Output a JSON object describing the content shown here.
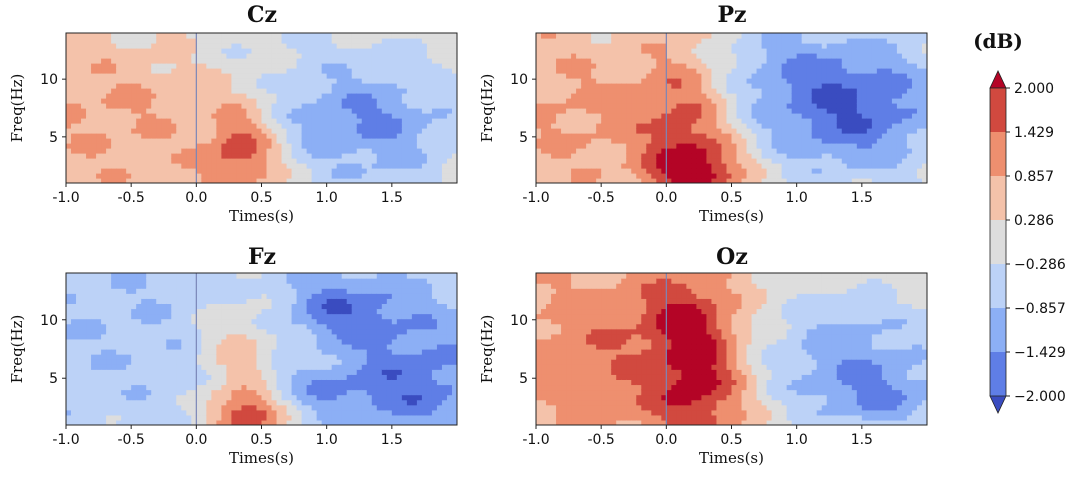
{
  "chart_data": {
    "type": "heatmap",
    "description_units": "time-frequency power",
    "xlabel": "Times(s)",
    "ylabel": "Freq(Hz)",
    "xlim": [
      -1.0,
      2.0
    ],
    "ylim": [
      1,
      14
    ],
    "x_ticks": [
      "-1.0",
      "-0.5",
      "0.0",
      "0.5",
      "1.0",
      "1.5"
    ],
    "x_tick_values": [
      -1.0,
      -0.5,
      0.0,
      0.5,
      1.0,
      1.5
    ],
    "y_ticks": [
      "5",
      "10"
    ],
    "y_tick_values": [
      5,
      10
    ],
    "event_marker_time": 0.0,
    "colorbar": {
      "label": "(dB)",
      "levels": [
        -2.0,
        -1.429,
        -0.857,
        -0.286,
        0.286,
        0.857,
        1.429,
        2.0
      ],
      "tick_labels": [
        "2.000",
        "1.429",
        "0.857",
        "0.286",
        "−0.286",
        "−0.857",
        "−1.429",
        "−2.000"
      ],
      "colors": [
        "#3a4cc0",
        "#5f7ee6",
        "#8caff5",
        "#bcd2f7",
        "#dddddd",
        "#f4c2aa",
        "#ee8f6f",
        "#d1493f",
        "#b40426"
      ]
    },
    "panels": [
      {
        "title": "Cz",
        "background_level": 0.5,
        "blobs": [
          {
            "t": -0.6,
            "f": 8,
            "st": 0.5,
            "sf": 5,
            "a": 0.4
          },
          {
            "t": 0.35,
            "f": 4,
            "st": 0.2,
            "sf": 2.5,
            "a": 1.6
          },
          {
            "t": 1.3,
            "f": 6.5,
            "st": 0.6,
            "sf": 3.5,
            "a": -2.0
          },
          {
            "t": 0.8,
            "f": 13,
            "st": 1.2,
            "sf": 2,
            "a": -0.6
          },
          {
            "t": 1.4,
            "f": 1.5,
            "st": 0.5,
            "sf": 1.5,
            "a": -0.5
          }
        ]
      },
      {
        "title": "Pz",
        "background_level": 0.2,
        "blobs": [
          {
            "t": -0.6,
            "f": 8,
            "st": 0.6,
            "sf": 6,
            "a": 0.8
          },
          {
            "t": 0.15,
            "f": 8,
            "st": 0.25,
            "sf": 5,
            "a": 1.2
          },
          {
            "t": 0.25,
            "f": 2,
            "st": 0.25,
            "sf": 2,
            "a": 1.8
          },
          {
            "t": 1.4,
            "f": 7,
            "st": 0.55,
            "sf": 4,
            "a": -2.1
          },
          {
            "t": 0.8,
            "f": 12,
            "st": 0.8,
            "sf": 3,
            "a": -0.8
          }
        ]
      },
      {
        "title": "Fz",
        "background_level": -0.5,
        "blobs": [
          {
            "t": -0.5,
            "f": 10,
            "st": 0.7,
            "sf": 5,
            "a": -0.3
          },
          {
            "t": 0.4,
            "f": 1.8,
            "st": 0.2,
            "sf": 1.6,
            "a": 2.4
          },
          {
            "t": 0.3,
            "f": 6,
            "st": 0.2,
            "sf": 2.5,
            "a": 0.9
          },
          {
            "t": 0.4,
            "f": 10,
            "st": 0.3,
            "sf": 3,
            "a": 0.6
          },
          {
            "t": 1.1,
            "f": 11,
            "st": 0.35,
            "sf": 2,
            "a": -1.3
          },
          {
            "t": 1.7,
            "f": 5,
            "st": 0.4,
            "sf": 4,
            "a": -1.2
          },
          {
            "t": 1.0,
            "f": 4,
            "st": 0.4,
            "sf": 1.5,
            "a": -0.7
          }
        ]
      },
      {
        "title": "Oz",
        "background_level": 0.3,
        "blobs": [
          {
            "t": -0.5,
            "f": 7,
            "st": 0.6,
            "sf": 6,
            "a": 1.0
          },
          {
            "t": 0.25,
            "f": 5,
            "st": 0.25,
            "sf": 4.5,
            "a": 1.7
          },
          {
            "t": 0.15,
            "f": 11,
            "st": 0.25,
            "sf": 2.5,
            "a": 0.8
          },
          {
            "t": 1.4,
            "f": 7,
            "st": 0.55,
            "sf": 4,
            "a": -1.5
          },
          {
            "t": 1.7,
            "f": 3,
            "st": 0.4,
            "sf": 2,
            "a": -1.0
          }
        ]
      }
    ]
  }
}
